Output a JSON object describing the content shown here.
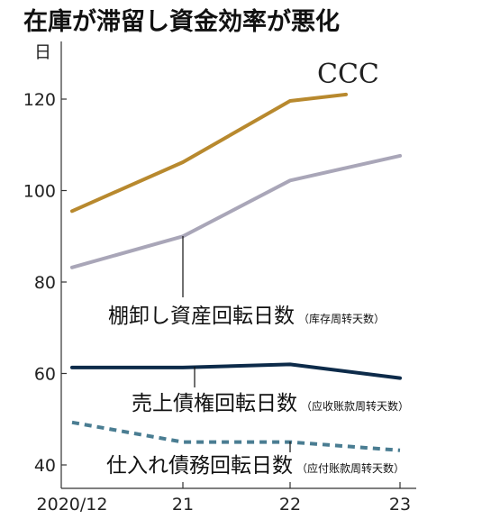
{
  "chart_data": {
    "type": "line",
    "title": "在庫が滞留し資金効率が悪化",
    "yunit": "日",
    "x": [
      "2020/12",
      "21",
      "22",
      "23"
    ],
    "ylim": [
      38,
      126
    ],
    "yticks": [
      "40",
      "60",
      "80",
      "100",
      "120"
    ],
    "grid": false,
    "series": [
      {
        "key": "sales",
        "name": "売上債権回転日数",
        "note": "（应收账款周转天数）",
        "values": [
          61.3,
          61.3,
          62.0,
          59.0
        ],
        "color": "#0d2b4a",
        "style": "solid"
      },
      {
        "key": "inventory",
        "name": "棚卸し資産回転日数",
        "note": "（库存周转天数）",
        "values": [
          83.2,
          90.0,
          102.2,
          107.6
        ],
        "color": "#a9a6b8",
        "style": "solid"
      },
      {
        "key": "payables",
        "name": "仕入れ債務回転日数",
        "note": "（应付账款周转天数）",
        "values": [
          49.3,
          45.0,
          45.0,
          43.2
        ],
        "color": "#4a7d92",
        "style": "dashed"
      },
      {
        "key": "ccc",
        "name": "CCC",
        "note": "",
        "values": [
          95.5,
          106.2,
          119.6,
          121.0
        ],
        "color": "#b8892e",
        "style": "solid"
      }
    ]
  }
}
